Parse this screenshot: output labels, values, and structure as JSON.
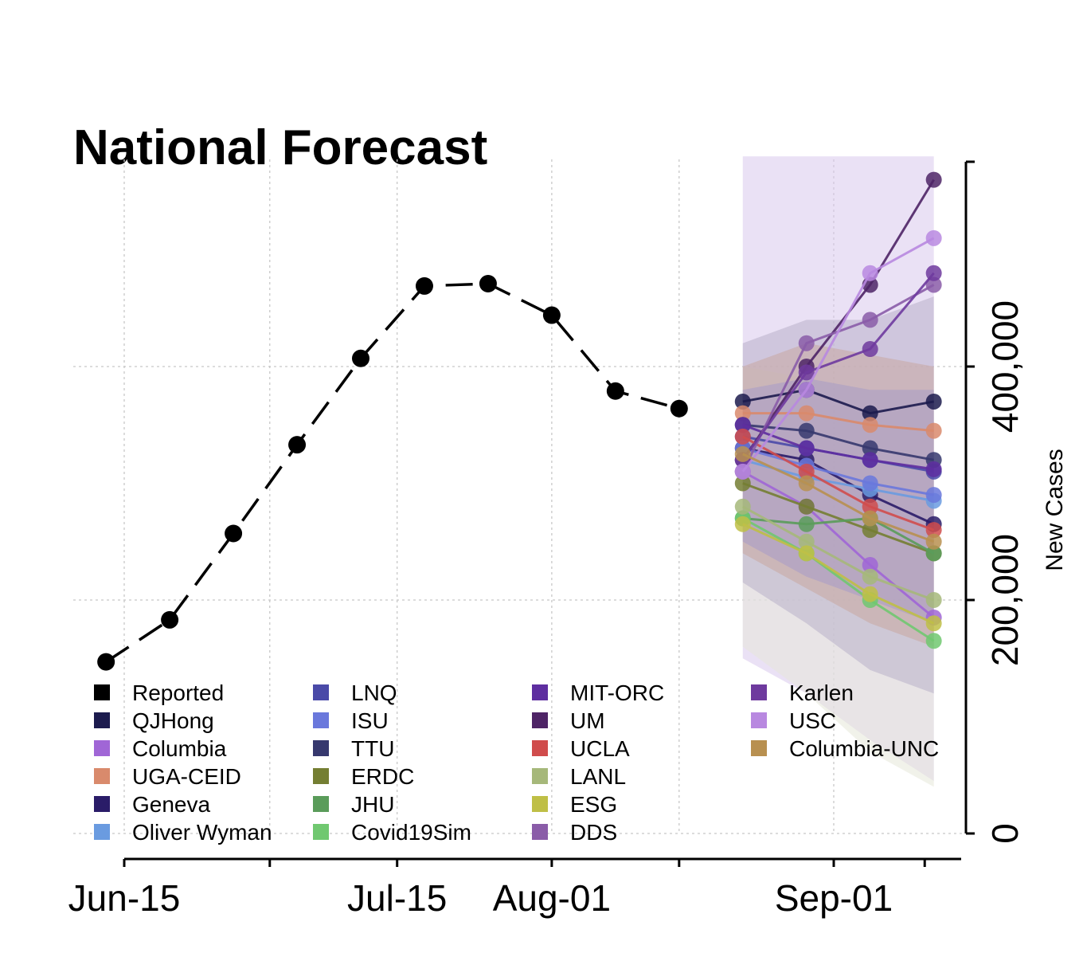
{
  "chart_data": {
    "type": "line",
    "title": "National Forecast",
    "xlabel": "",
    "ylabel": "New Cases",
    "x_tick_labels": [
      "Jun-15",
      "Jul-15",
      "Aug-01",
      "Sep-01"
    ],
    "y_tick_labels": [
      "0",
      "200,000",
      "400,000"
    ],
    "ylim": [
      0,
      580000
    ],
    "grid": true,
    "legend_position": "bottom-left, inside plot",
    "reported": {
      "name": "Reported",
      "color": "#000000",
      "x": [
        "2020-06-13",
        "2020-06-20",
        "2020-06-27",
        "2020-07-04",
        "2020-07-11",
        "2020-07-18",
        "2020-07-25",
        "2020-08-01",
        "2020-08-08",
        "2020-08-15"
      ],
      "values": [
        147000,
        183000,
        257000,
        333000,
        407000,
        469000,
        471000,
        444000,
        379000,
        364000
      ]
    },
    "forecast_x": [
      "2020-08-22",
      "2020-08-29",
      "2020-09-05",
      "2020-09-12"
    ],
    "series": [
      {
        "name": "QJHong",
        "color": "#1c1b4e",
        "values": [
          370000,
          380000,
          360000,
          370000
        ]
      },
      {
        "name": "Columbia",
        "color": "#a066d6",
        "values": [
          310000,
          280000,
          230000,
          185000
        ]
      },
      {
        "name": "UGA-CEID",
        "color": "#d98a6c",
        "values": [
          360000,
          360000,
          350000,
          345000
        ]
      },
      {
        "name": "Geneva",
        "color": "#2a1c68",
        "values": [
          330000,
          320000,
          290000,
          265000
        ]
      },
      {
        "name": "Oliver Wyman",
        "color": "#6a9be0",
        "values": [
          320000,
          305000,
          295000,
          285000
        ]
      },
      {
        "name": "LNQ",
        "color": "#4a4aa8",
        "values": [
          340000,
          330000,
          320000,
          310000
        ]
      },
      {
        "name": "ISU",
        "color": "#6a78dc",
        "values": [
          330000,
          315000,
          300000,
          290000
        ]
      },
      {
        "name": "TTU",
        "color": "#36386e",
        "values": [
          350000,
          345000,
          330000,
          320000
        ]
      },
      {
        "name": "ERDC",
        "color": "#747e32",
        "values": [
          300000,
          280000,
          260000,
          240000
        ]
      },
      {
        "name": "JHU",
        "color": "#5a9c5a",
        "values": [
          270000,
          265000,
          270000,
          240000
        ]
      },
      {
        "name": "Covid19Sim",
        "color": "#70c870",
        "values": [
          270000,
          240000,
          200000,
          165000
        ]
      },
      {
        "name": "MIT-ORC",
        "color": "#5e2ea0",
        "values": [
          350000,
          330000,
          320000,
          312000
        ]
      },
      {
        "name": "UM",
        "color": "#4e2466",
        "values": [
          320000,
          400000,
          470000,
          560000
        ]
      },
      {
        "name": "UCLA",
        "color": "#d04c4c",
        "values": [
          340000,
          310000,
          280000,
          260000
        ]
      },
      {
        "name": "LANL",
        "color": "#a6b87a",
        "values": [
          280000,
          250000,
          220000,
          200000
        ]
      },
      {
        "name": "ESG",
        "color": "#bfbf46",
        "values": [
          265000,
          240000,
          205000,
          180000
        ]
      },
      {
        "name": "DDS",
        "color": "#8a5ca8",
        "values": [
          310000,
          420000,
          440000,
          470000
        ]
      },
      {
        "name": "Karlen",
        "color": "#6e3a9e",
        "values": [
          320000,
          395000,
          415000,
          480000
        ]
      },
      {
        "name": "USC",
        "color": "#b888e0",
        "values": [
          310000,
          380000,
          480000,
          510000
        ]
      },
      {
        "name": "Columbia-UNC",
        "color": "#b89050",
        "values": [
          325000,
          300000,
          270000,
          250000
        ]
      }
    ],
    "legend": [
      {
        "label": "Reported",
        "color": "#000000"
      },
      {
        "label": "QJHong",
        "color": "#1c1b4e"
      },
      {
        "label": "Columbia",
        "color": "#a066d6"
      },
      {
        "label": "UGA-CEID",
        "color": "#d98a6c"
      },
      {
        "label": "Geneva",
        "color": "#2a1c68"
      },
      {
        "label": "Oliver Wyman",
        "color": "#6a9be0"
      },
      {
        "label": "LNQ",
        "color": "#4a4aa8"
      },
      {
        "label": "ISU",
        "color": "#6a78dc"
      },
      {
        "label": "TTU",
        "color": "#36386e"
      },
      {
        "label": "ERDC",
        "color": "#747e32"
      },
      {
        "label": "JHU",
        "color": "#5a9c5a"
      },
      {
        "label": "Covid19Sim",
        "color": "#70c870"
      },
      {
        "label": "MIT-ORC",
        "color": "#5e2ea0"
      },
      {
        "label": "UM",
        "color": "#4e2466"
      },
      {
        "label": "UCLA",
        "color": "#d04c4c"
      },
      {
        "label": "LANL",
        "color": "#a6b87a"
      },
      {
        "label": "ESG",
        "color": "#bfbf46"
      },
      {
        "label": "DDS",
        "color": "#8a5ca8"
      },
      {
        "label": "Karlen",
        "color": "#6e3a9e"
      },
      {
        "label": "USC",
        "color": "#b888e0"
      },
      {
        "label": "Columbia-UNC",
        "color": "#b89050"
      }
    ],
    "bands": [
      {
        "color": "#d9c8ec",
        "lower": [
          150000,
          120000,
          80000,
          45000
        ],
        "upper": [
          580000,
          580000,
          580000,
          580000
        ]
      },
      {
        "color": "#e6e8d8",
        "lower": [
          160000,
          120000,
          70000,
          40000
        ],
        "upper": [
          400000,
          390000,
          380000,
          380000
        ]
      },
      {
        "color": "#b8b0c8",
        "lower": [
          215000,
          180000,
          140000,
          120000
        ],
        "upper": [
          420000,
          440000,
          440000,
          460000
        ]
      },
      {
        "color": "#c8a8a0",
        "lower": [
          240000,
          210000,
          180000,
          160000
        ],
        "upper": [
          400000,
          420000,
          410000,
          400000
        ]
      },
      {
        "color": "#a89ac8",
        "lower": [
          250000,
          220000,
          200000,
          180000
        ],
        "upper": [
          380000,
          390000,
          380000,
          380000
        ]
      }
    ]
  }
}
